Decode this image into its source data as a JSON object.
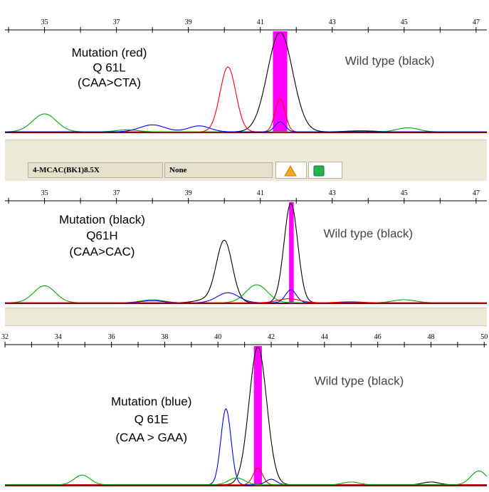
{
  "toolbar": {
    "sample_name": "4-MCAC(BK1)8.5X",
    "filter_value": "None",
    "warning_icon": "warning-triangle-icon",
    "status_icon": "green-square-icon",
    "colors": {
      "warning": "#f5a623",
      "status": "#22b14c"
    }
  },
  "chart_data": [
    {
      "type": "line",
      "title": "",
      "xlabel": "",
      "ylabel": "",
      "xlim": [
        33.9,
        47.3
      ],
      "ylim": [
        0,
        100
      ],
      "ticks": [
        {
          "v": 35,
          "label": "35"
        },
        {
          "v": 37,
          "label": "37"
        },
        {
          "v": 39,
          "label": "39"
        },
        {
          "v": 41,
          "label": "41"
        },
        {
          "v": 43,
          "label": "43"
        },
        {
          "v": 45,
          "label": "45"
        },
        {
          "v": 47,
          "label": "47"
        }
      ],
      "highlight": {
        "from": 41.35,
        "to": 41.75,
        "color": "#ff00ff"
      },
      "annotations": [
        {
          "text": "Mutation (red)",
          "x": 36.8,
          "y": 76
        },
        {
          "text": "Q 61L",
          "x": 36.8,
          "y": 61
        },
        {
          "text": "(CAA>CTA)",
          "x": 36.8,
          "y": 46
        },
        {
          "text": "Wild type (black)",
          "x": 44.6,
          "y": 68
        }
      ],
      "series": [
        {
          "color": "#000000",
          "peaks": [
            {
              "x": 41.55,
              "h": 100,
              "w": 0.35
            },
            {
              "x": 43.8,
              "h": 1,
              "w": 0.4
            }
          ]
        },
        {
          "color": "#ff0000",
          "peaks": [
            {
              "x": 40.1,
              "h": 65,
              "w": 0.22
            },
            {
              "x": 41.55,
              "h": 33,
              "w": 0.14
            }
          ]
        },
        {
          "color": "#00aa00",
          "peaks": [
            {
              "x": 35.0,
              "h": 18,
              "w": 0.33
            },
            {
              "x": 45.1,
              "h": 4,
              "w": 0.3
            },
            {
              "x": 37.3,
              "h": 2,
              "w": 0.3
            }
          ]
        },
        {
          "color": "#0000ff",
          "peaks": [
            {
              "x": 38.0,
              "h": 7,
              "w": 0.35
            },
            {
              "x": 39.3,
              "h": 6,
              "w": 0.3
            },
            {
              "x": 41.55,
              "h": 10,
              "w": 0.14
            }
          ]
        }
      ]
    },
    {
      "type": "line",
      "title": "",
      "xlabel": "",
      "ylabel": "",
      "xlim": [
        33.9,
        47.3
      ],
      "ylim": [
        0,
        100
      ],
      "ticks": [
        {
          "v": 35,
          "label": "35"
        },
        {
          "v": 37,
          "label": "37"
        },
        {
          "v": 39,
          "label": "39"
        },
        {
          "v": 41,
          "label": "41"
        },
        {
          "v": 43,
          "label": "43"
        },
        {
          "v": 45,
          "label": "45"
        },
        {
          "v": 47,
          "label": "47"
        }
      ],
      "highlight": {
        "from": 41.8,
        "to": 41.93,
        "color": "#ff00ff"
      },
      "annotations": [
        {
          "text": "Mutation (black)",
          "x": 36.6,
          "y": 80
        },
        {
          "text": "Q61H",
          "x": 36.6,
          "y": 64
        },
        {
          "text": "(CAA>CAC)",
          "x": 36.6,
          "y": 48
        },
        {
          "text": "Wild type (black)",
          "x": 44.0,
          "y": 66
        }
      ],
      "series": [
        {
          "color": "#000000",
          "peaks": [
            {
              "x": 40.0,
              "h": 62,
              "w": 0.22
            },
            {
              "x": 41.85,
              "h": 100,
              "w": 0.19
            },
            {
              "x": 39.5,
              "h": 3,
              "w": 0.3
            }
          ]
        },
        {
          "color": "#00aa00",
          "peaks": [
            {
              "x": 35.0,
              "h": 17,
              "w": 0.3
            },
            {
              "x": 40.9,
              "h": 18,
              "w": 0.3
            },
            {
              "x": 38.0,
              "h": 3,
              "w": 0.3
            },
            {
              "x": 45.0,
              "h": 3,
              "w": 0.3
            }
          ]
        },
        {
          "color": "#0000ff",
          "peaks": [
            {
              "x": 40.1,
              "h": 10,
              "w": 0.3
            },
            {
              "x": 41.85,
              "h": 13,
              "w": 0.15
            },
            {
              "x": 38.0,
              "h": 2,
              "w": 0.3
            }
          ]
        },
        {
          "color": "#ff0000",
          "peaks": [
            {
              "x": 41.8,
              "h": 4,
              "w": 0.3
            },
            {
              "x": 43.5,
              "h": 1,
              "w": 0.3
            }
          ]
        }
      ]
    },
    {
      "type": "line",
      "title": "",
      "xlabel": "",
      "ylabel": "",
      "xlim": [
        32.0,
        50.1
      ],
      "ylim": [
        0,
        100
      ],
      "ticks": [
        {
          "v": 32,
          "label": "32"
        },
        {
          "v": 34,
          "label": "34"
        },
        {
          "v": 36,
          "label": "36"
        },
        {
          "v": 38,
          "label": "38"
        },
        {
          "v": 40,
          "label": "40"
        },
        {
          "v": 42,
          "label": "42"
        },
        {
          "v": 44,
          "label": "44"
        },
        {
          "v": 46,
          "label": "46"
        },
        {
          "v": 48,
          "label": "48"
        },
        {
          "v": 50,
          "label": "50"
        }
      ],
      "highlight": {
        "from": 41.35,
        "to": 41.65,
        "color": "#ff00ff"
      },
      "annotations": [
        {
          "text": "Mutation (blue)",
          "x": 37.5,
          "y": 58
        },
        {
          "text": "Q 61E",
          "x": 37.5,
          "y": 45
        },
        {
          "text": "(CAA > GAA)",
          "x": 37.5,
          "y": 32
        },
        {
          "text": "Wild type (black)",
          "x": 45.3,
          "y": 73
        }
      ],
      "series": [
        {
          "color": "#000000",
          "peaks": [
            {
              "x": 41.5,
              "h": 100,
              "w": 0.33
            },
            {
              "x": 48.0,
              "h": 2,
              "w": 0.3
            }
          ]
        },
        {
          "color": "#0000ff",
          "peaks": [
            {
              "x": 40.3,
              "h": 55,
              "w": 0.19
            },
            {
              "x": 42.0,
              "h": 4,
              "w": 0.2
            }
          ]
        },
        {
          "color": "#ff0000",
          "peaks": [
            {
              "x": 41.5,
              "h": 12,
              "w": 0.18
            }
          ]
        },
        {
          "color": "#00aa00",
          "peaks": [
            {
              "x": 34.9,
              "h": 7,
              "w": 0.3
            },
            {
              "x": 49.8,
              "h": 10,
              "w": 0.3
            },
            {
              "x": 40.7,
              "h": 5,
              "w": 0.3
            },
            {
              "x": 45.0,
              "h": 2,
              "w": 0.3
            }
          ]
        }
      ]
    }
  ]
}
